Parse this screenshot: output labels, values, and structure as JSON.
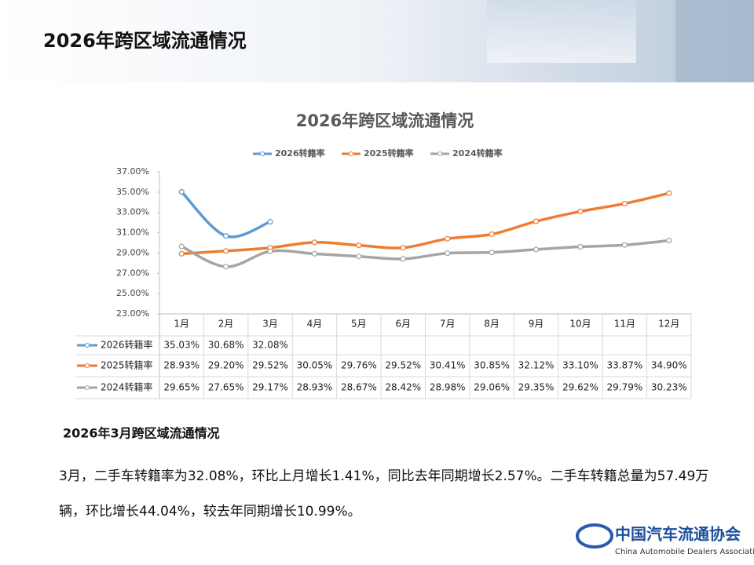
{
  "header": {
    "title": "2026年跨区域流通情况"
  },
  "chart_data": {
    "type": "line",
    "title": "2026年跨区域流通情况",
    "categories": [
      "1月",
      "2月",
      "3月",
      "4月",
      "5月",
      "6月",
      "7月",
      "8月",
      "9月",
      "10月",
      "11月",
      "12月"
    ],
    "series": [
      {
        "name": "2026转籍率",
        "color": "#5b9bd5",
        "values": [
          35.03,
          30.68,
          32.08,
          null,
          null,
          null,
          null,
          null,
          null,
          null,
          null,
          null
        ],
        "value_labels": [
          "35.03%",
          "30.68%",
          "32.08%",
          null,
          null,
          null,
          null,
          null,
          null,
          null,
          null,
          null
        ]
      },
      {
        "name": "2025转籍率",
        "color": "#ed7d31",
        "values": [
          28.93,
          29.2,
          29.52,
          30.05,
          29.76,
          29.52,
          30.41,
          30.85,
          32.12,
          33.1,
          33.87,
          34.9
        ],
        "value_labels": [
          "28.93%",
          "29.20%",
          "29.52%",
          "30.05%",
          "29.76%",
          "29.52%",
          "30.41%",
          "30.85%",
          "32.12%",
          "33.10%",
          "33.87%",
          "34.90%"
        ]
      },
      {
        "name": "2024转籍率",
        "color": "#a5a5a5",
        "values": [
          29.65,
          27.65,
          29.17,
          28.93,
          28.67,
          28.42,
          28.98,
          29.06,
          29.35,
          29.62,
          29.79,
          30.23
        ],
        "value_labels": [
          "29.65%",
          "27.65%",
          "29.17%",
          "28.93%",
          "28.67%",
          "28.42%",
          "28.98%",
          "29.06%",
          "29.35%",
          "29.62%",
          "29.79%",
          "30.23%"
        ]
      }
    ],
    "ylim": [
      23,
      37
    ],
    "yticks": [
      {
        "value": 23,
        "label": "23.00%"
      },
      {
        "value": 25,
        "label": "25.00%"
      },
      {
        "value": 27,
        "label": "27.00%"
      },
      {
        "value": 29,
        "label": "29.00%"
      },
      {
        "value": 31,
        "label": "31.00%"
      },
      {
        "value": 33,
        "label": "33.00%"
      },
      {
        "value": 35,
        "label": "35.00%"
      },
      {
        "value": 37,
        "label": "37.00%"
      }
    ],
    "legend": "top",
    "grid": false
  },
  "section": {
    "title": "2026年3月跨区域流通情况",
    "text": "3月，二手车转籍率为32.08%，环比上月增长1.41%，同比去年同期增长2.57%。二手车转籍总量为57.49万辆，环比增长44.04%，较去年同期增长10.99%。"
  },
  "logo": {
    "name": "中国汽车流通协会",
    "english": "China Automobile Dealers Association"
  }
}
